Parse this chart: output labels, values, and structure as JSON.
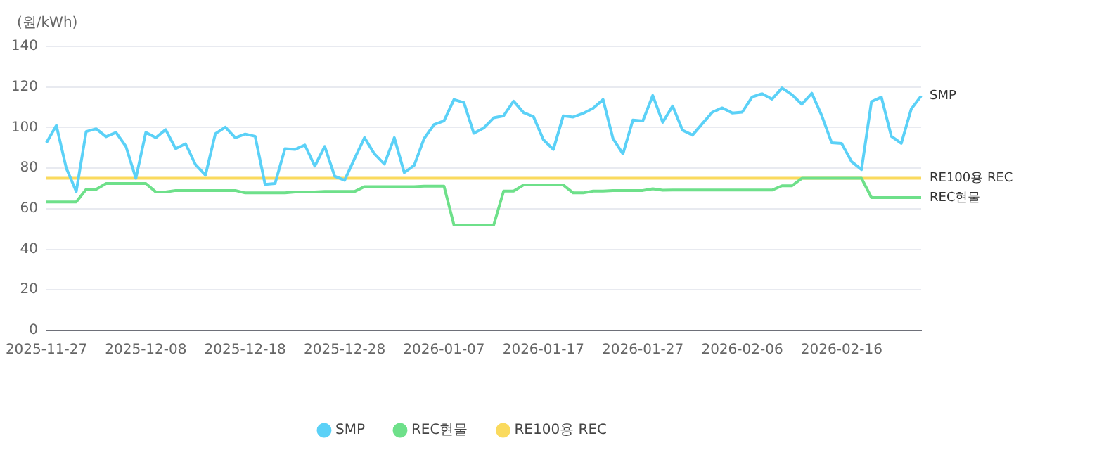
{
  "chart_data": {
    "type": "line",
    "ylabel": "(원/kWh)",
    "categories": [
      "2025-11-27",
      null,
      null,
      null,
      null,
      null,
      null,
      null,
      null,
      null,
      "2025-12-08",
      null,
      null,
      null,
      null,
      null,
      null,
      null,
      null,
      null,
      "2025-12-18",
      null,
      null,
      null,
      null,
      null,
      null,
      null,
      null,
      null,
      "2025-12-28",
      null,
      null,
      null,
      null,
      null,
      null,
      null,
      null,
      null,
      "2026-01-07",
      null,
      null,
      null,
      null,
      null,
      null,
      null,
      null,
      null,
      "2026-01-17",
      null,
      null,
      null,
      null,
      null,
      null,
      null,
      null,
      null,
      "2026-01-27",
      null,
      null,
      null,
      null,
      null,
      null,
      null,
      null,
      null,
      "2026-02-06",
      null,
      null,
      null,
      null,
      null,
      null,
      null,
      null,
      null,
      "2026-02-16",
      null,
      null,
      null,
      null,
      null,
      null,
      null,
      null
    ],
    "series": [
      {
        "name": "SMP",
        "color": "#5bd1f7",
        "values": [
          92.5,
          101,
          80,
          68.5,
          98,
          99.4,
          95.5,
          97.6,
          90.7,
          75,
          97.6,
          95,
          99,
          89.6,
          92,
          81.7,
          76.5,
          97,
          100.2,
          95,
          96.8,
          95.7,
          72,
          72.4,
          89.6,
          89.2,
          91.4,
          81,
          90.7,
          76,
          74,
          84.7,
          95,
          87,
          82,
          95,
          77.8,
          81.4,
          94.6,
          101.5,
          103.3,
          113.8,
          112.3,
          97.2,
          99.8,
          104.8,
          105.8,
          113,
          107.4,
          105.4,
          94,
          89.2,
          105.8,
          105.2,
          107,
          109.5,
          113.8,
          94.6,
          87,
          103.7,
          103.3,
          115.8,
          102.6,
          110.6,
          98.7,
          96.3,
          102,
          107.6,
          109.7,
          107.2,
          107.6,
          115.1,
          116.7,
          114,
          119.5,
          116.2,
          111.5,
          116.9,
          105.9,
          92.5,
          92.2,
          83.2,
          79.3,
          112.8,
          115,
          95.7,
          92.2,
          109.1,
          115.6
        ]
      },
      {
        "name": "REC현물",
        "color": "#6ee08a",
        "values": [
          63.3,
          63.3,
          63.3,
          63.3,
          69.6,
          69.6,
          72.4,
          72.4,
          72.4,
          72.4,
          72.4,
          68.3,
          68.3,
          69,
          69,
          69,
          69,
          69,
          69,
          69,
          67.8,
          67.8,
          67.8,
          67.8,
          67.8,
          68.3,
          68.3,
          68.3,
          68.5,
          68.5,
          68.5,
          68.5,
          70.9,
          70.9,
          70.9,
          70.9,
          70.9,
          70.9,
          71.1,
          71.1,
          71.1,
          52,
          52,
          52,
          52,
          52,
          68.7,
          68.7,
          71.7,
          71.7,
          71.7,
          71.7,
          71.7,
          67.8,
          67.8,
          68.7,
          68.7,
          69,
          69,
          69,
          69,
          69.8,
          69.1,
          69.2,
          69.2,
          69.2,
          69.2,
          69.2,
          69.2,
          69.2,
          69.2,
          69.2,
          69.2,
          69.2,
          71.3,
          71.3,
          75,
          75,
          75,
          75,
          75,
          75,
          75,
          65.5,
          65.5,
          65.5,
          65.5,
          65.5,
          65.5
        ]
      },
      {
        "name": "RE100용 REC",
        "color": "#fada5e",
        "values": [
          75,
          75,
          75,
          75,
          75,
          75,
          75,
          75,
          75,
          75,
          75,
          75,
          75,
          75,
          75,
          75,
          75,
          75,
          75,
          75,
          75,
          75,
          75,
          75,
          75,
          75,
          75,
          75,
          75,
          75,
          75,
          75,
          75,
          75,
          75,
          75,
          75,
          75,
          75,
          75,
          75,
          75,
          75,
          75,
          75,
          75,
          75,
          75,
          75,
          75,
          75,
          75,
          75,
          75,
          75,
          75,
          75,
          75,
          75,
          75,
          75,
          75,
          75,
          75,
          75,
          75,
          75,
          75,
          75,
          75,
          75,
          75,
          75,
          75,
          75,
          75,
          75,
          75,
          75,
          75,
          75,
          75,
          75,
          75,
          75,
          75,
          75,
          75,
          75
        ]
      }
    ],
    "ylim": [
      0,
      140
    ],
    "yticks": [
      0,
      20,
      40,
      60,
      80,
      100,
      120,
      140
    ],
    "grid": "y",
    "legend": "bottom",
    "marker": "none",
    "line_style": "solid"
  }
}
